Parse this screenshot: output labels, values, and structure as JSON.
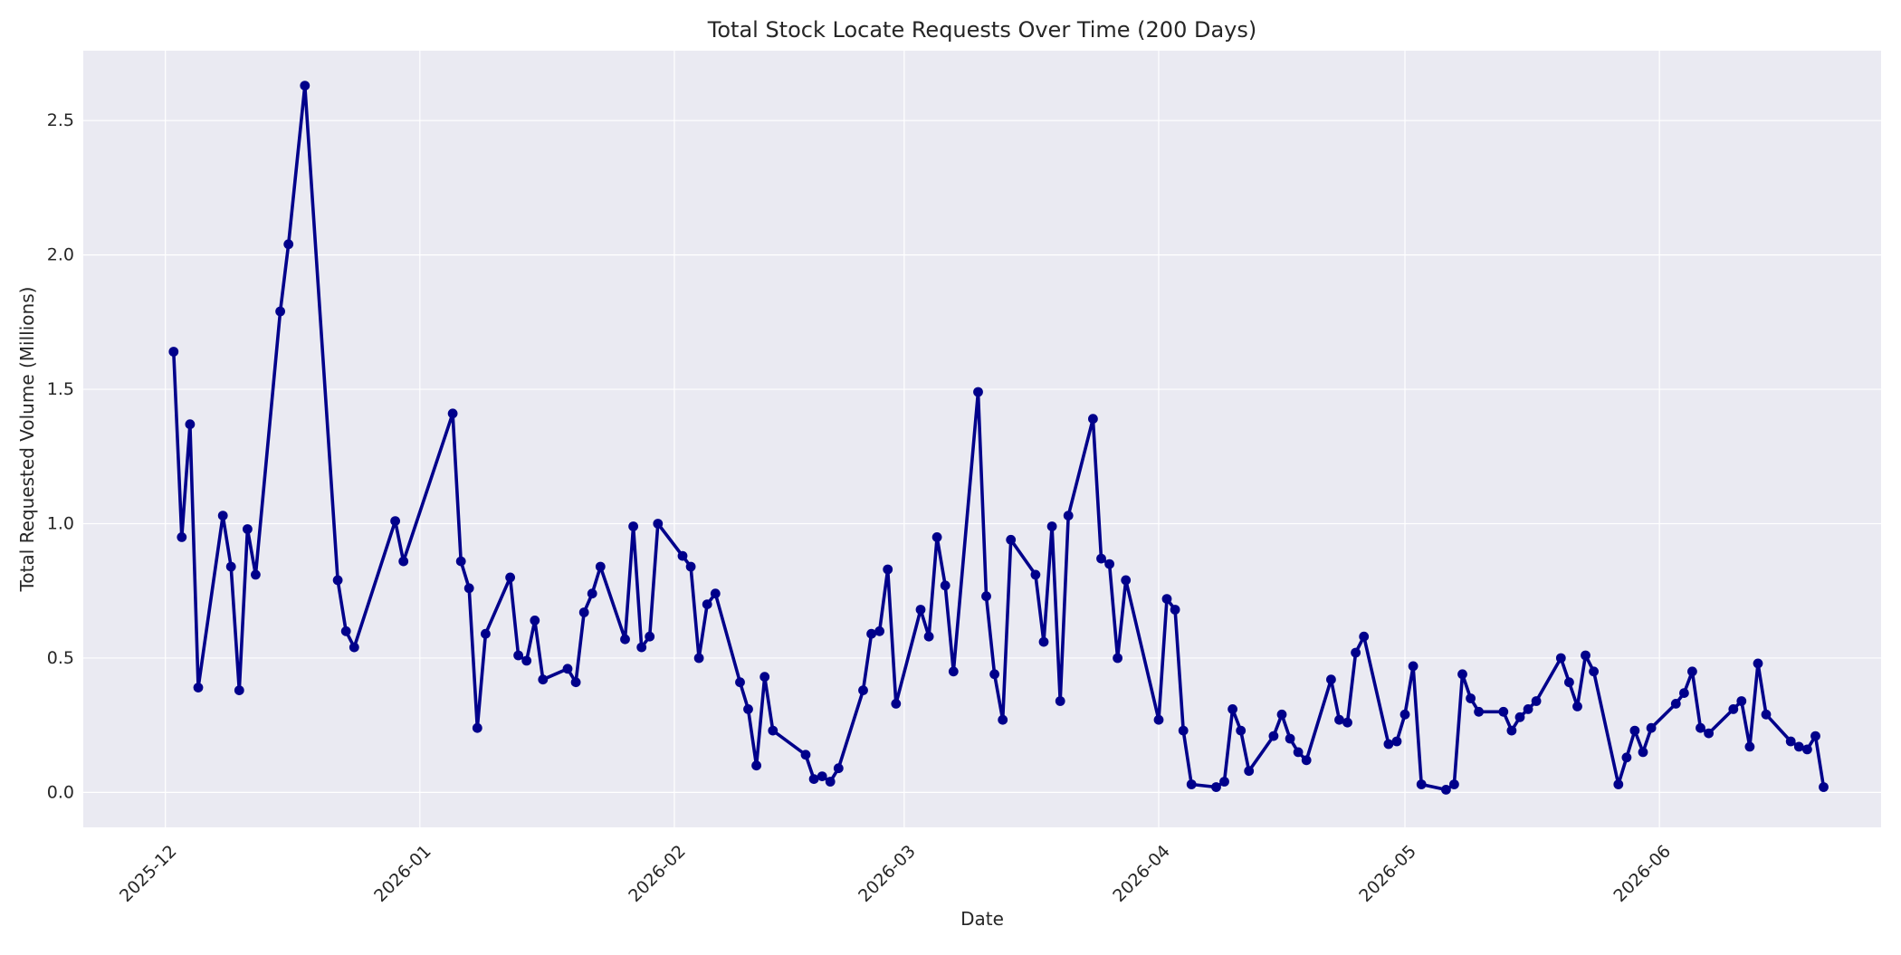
{
  "chart_data": {
    "type": "line",
    "title": "Total Stock Locate Requests Over Time (200 Days)",
    "xlabel": "Date",
    "ylabel": "Total Requested Volume (Millions)",
    "x_tick_labels": [
      "2025-12",
      "2026-01",
      "2026-02",
      "2026-03",
      "2026-04",
      "2026-05",
      "2026-06"
    ],
    "x_ticks": [
      "2025-12-01",
      "2026-01-01",
      "2026-02-01",
      "2026-03-01",
      "2026-04-01",
      "2026-05-01",
      "2026-06-01"
    ],
    "y_ticks": [
      0.0,
      0.5,
      1.0,
      1.5,
      2.0,
      2.5
    ],
    "y_tick_labels": [
      "0.0",
      "0.5",
      "1.0",
      "1.5",
      "2.0",
      "2.5"
    ],
    "xlim": [
      "2025-11-21",
      "2026-06-28"
    ],
    "ylim": [
      -0.13,
      2.76
    ],
    "grid": true,
    "legend": "none",
    "colors": {
      "line": "#00008b",
      "plot_background": "#eaeaf2",
      "grid": "#ffffff",
      "page_background": "#ffffff"
    },
    "series": [
      {
        "points": [
          [
            "2025-12-02",
            1.64
          ],
          [
            "2025-12-03",
            0.95
          ],
          [
            "2025-12-04",
            1.37
          ],
          [
            "2025-12-05",
            0.39
          ],
          [
            "2025-12-08",
            1.03
          ],
          [
            "2025-12-09",
            0.84
          ],
          [
            "2025-12-10",
            0.38
          ],
          [
            "2025-12-11",
            0.98
          ],
          [
            "2025-12-12",
            0.81
          ],
          [
            "2025-12-15",
            1.79
          ],
          [
            "2025-12-16",
            2.04
          ],
          [
            "2025-12-18",
            2.63
          ],
          [
            "2025-12-22",
            0.79
          ],
          [
            "2025-12-23",
            0.6
          ],
          [
            "2025-12-24",
            0.54
          ],
          [
            "2025-12-29",
            1.01
          ],
          [
            "2025-12-30",
            0.86
          ],
          [
            "2026-01-05",
            1.41
          ],
          [
            "2026-01-06",
            0.86
          ],
          [
            "2026-01-07",
            0.76
          ],
          [
            "2026-01-08",
            0.24
          ],
          [
            "2026-01-09",
            0.59
          ],
          [
            "2026-01-12",
            0.8
          ],
          [
            "2026-01-13",
            0.51
          ],
          [
            "2026-01-14",
            0.49
          ],
          [
            "2026-01-15",
            0.64
          ],
          [
            "2026-01-16",
            0.42
          ],
          [
            "2026-01-19",
            0.46
          ],
          [
            "2026-01-20",
            0.41
          ],
          [
            "2026-01-21",
            0.67
          ],
          [
            "2026-01-22",
            0.74
          ],
          [
            "2026-01-23",
            0.84
          ],
          [
            "2026-01-26",
            0.57
          ],
          [
            "2026-01-27",
            0.99
          ],
          [
            "2026-01-28",
            0.54
          ],
          [
            "2026-01-29",
            0.58
          ],
          [
            "2026-01-30",
            1.0
          ],
          [
            "2026-02-02",
            0.88
          ],
          [
            "2026-02-03",
            0.84
          ],
          [
            "2026-02-04",
            0.5
          ],
          [
            "2026-02-05",
            0.7
          ],
          [
            "2026-02-06",
            0.74
          ],
          [
            "2026-02-09",
            0.41
          ],
          [
            "2026-02-10",
            0.31
          ],
          [
            "2026-02-11",
            0.1
          ],
          [
            "2026-02-12",
            0.43
          ],
          [
            "2026-02-13",
            0.23
          ],
          [
            "2026-02-17",
            0.14
          ],
          [
            "2026-02-18",
            0.05
          ],
          [
            "2026-02-19",
            0.06
          ],
          [
            "2026-02-20",
            0.04
          ],
          [
            "2026-02-21",
            0.09
          ],
          [
            "2026-02-24",
            0.38
          ],
          [
            "2026-02-25",
            0.59
          ],
          [
            "2026-02-26",
            0.6
          ],
          [
            "2026-02-27",
            0.83
          ],
          [
            "2026-02-28",
            0.33
          ],
          [
            "2026-03-03",
            0.68
          ],
          [
            "2026-03-04",
            0.58
          ],
          [
            "2026-03-05",
            0.95
          ],
          [
            "2026-03-06",
            0.77
          ],
          [
            "2026-03-07",
            0.45
          ],
          [
            "2026-03-10",
            1.49
          ],
          [
            "2026-03-11",
            0.73
          ],
          [
            "2026-03-12",
            0.44
          ],
          [
            "2026-03-13",
            0.27
          ],
          [
            "2026-03-14",
            0.94
          ],
          [
            "2026-03-17",
            0.81
          ],
          [
            "2026-03-18",
            0.56
          ],
          [
            "2026-03-19",
            0.99
          ],
          [
            "2026-03-20",
            0.34
          ],
          [
            "2026-03-21",
            1.03
          ],
          [
            "2026-03-24",
            1.39
          ],
          [
            "2026-03-25",
            0.87
          ],
          [
            "2026-03-26",
            0.85
          ],
          [
            "2026-03-27",
            0.5
          ],
          [
            "2026-03-28",
            0.79
          ],
          [
            "2026-04-01",
            0.27
          ],
          [
            "2026-04-02",
            0.72
          ],
          [
            "2026-04-03",
            0.68
          ],
          [
            "2026-04-04",
            0.23
          ],
          [
            "2026-04-05",
            0.03
          ],
          [
            "2026-04-08",
            0.02
          ],
          [
            "2026-04-09",
            0.04
          ],
          [
            "2026-04-10",
            0.31
          ],
          [
            "2026-04-11",
            0.23
          ],
          [
            "2026-04-12",
            0.08
          ],
          [
            "2026-04-15",
            0.21
          ],
          [
            "2026-04-16",
            0.29
          ],
          [
            "2026-04-17",
            0.2
          ],
          [
            "2026-04-18",
            0.15
          ],
          [
            "2026-04-19",
            0.12
          ],
          [
            "2026-04-22",
            0.42
          ],
          [
            "2026-04-23",
            0.27
          ],
          [
            "2026-04-24",
            0.26
          ],
          [
            "2026-04-25",
            0.52
          ],
          [
            "2026-04-26",
            0.58
          ],
          [
            "2026-04-29",
            0.18
          ],
          [
            "2026-04-30",
            0.19
          ],
          [
            "2026-05-01",
            0.29
          ],
          [
            "2026-05-02",
            0.47
          ],
          [
            "2026-05-03",
            0.03
          ],
          [
            "2026-05-06",
            0.01
          ],
          [
            "2026-05-07",
            0.03
          ],
          [
            "2026-05-08",
            0.44
          ],
          [
            "2026-05-09",
            0.35
          ],
          [
            "2026-05-10",
            0.3
          ],
          [
            "2026-05-13",
            0.3
          ],
          [
            "2026-05-14",
            0.23
          ],
          [
            "2026-05-15",
            0.28
          ],
          [
            "2026-05-16",
            0.31
          ],
          [
            "2026-05-17",
            0.34
          ],
          [
            "2026-05-20",
            0.5
          ],
          [
            "2026-05-21",
            0.41
          ],
          [
            "2026-05-22",
            0.32
          ],
          [
            "2026-05-23",
            0.51
          ],
          [
            "2026-05-24",
            0.45
          ],
          [
            "2026-05-27",
            0.03
          ],
          [
            "2026-05-28",
            0.13
          ],
          [
            "2026-05-29",
            0.23
          ],
          [
            "2026-05-30",
            0.15
          ],
          [
            "2026-05-31",
            0.24
          ],
          [
            "2026-06-03",
            0.33
          ],
          [
            "2026-06-04",
            0.37
          ],
          [
            "2026-06-05",
            0.45
          ],
          [
            "2026-06-06",
            0.24
          ],
          [
            "2026-06-07",
            0.22
          ],
          [
            "2026-06-10",
            0.31
          ],
          [
            "2026-06-11",
            0.34
          ],
          [
            "2026-06-12",
            0.17
          ],
          [
            "2026-06-13",
            0.48
          ],
          [
            "2026-06-14",
            0.29
          ],
          [
            "2026-06-17",
            0.19
          ],
          [
            "2026-06-18",
            0.17
          ],
          [
            "2026-06-19",
            0.16
          ],
          [
            "2026-06-20",
            0.21
          ],
          [
            "2026-06-21",
            0.02
          ]
        ]
      }
    ]
  }
}
